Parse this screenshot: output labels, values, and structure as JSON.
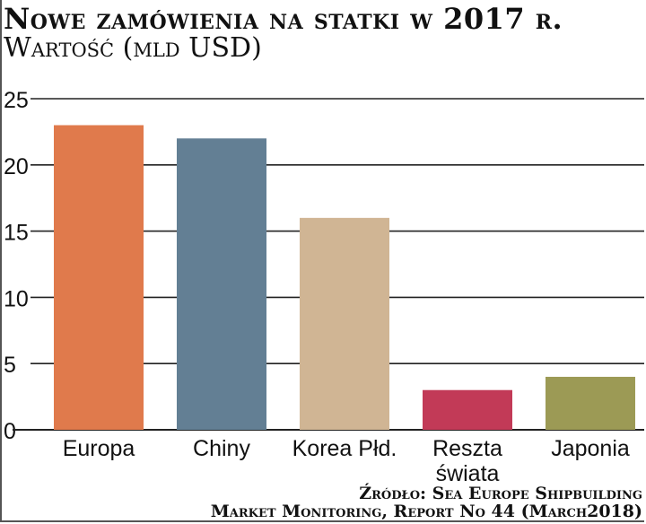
{
  "header": {
    "title": "Nowe zamówienia na statki w 2017 r.",
    "subtitle": "Wartość (mld USD)"
  },
  "source": {
    "line1": "Źródło: Sea Europe Shipbuilding",
    "line2": "Market Monitoring, Report No 44 (March2018)"
  },
  "chart_data": {
    "type": "bar",
    "title": "Nowe zamówienia na statki w 2017 r.",
    "ylabel": "Wartość (mld USD)",
    "xlabel": "",
    "categories": [
      "Europa",
      "Chiny",
      "Korea Płd.",
      "Reszta świata",
      "Japonia"
    ],
    "category_lines": [
      [
        "Europa"
      ],
      [
        "Chiny"
      ],
      [
        "Korea Płd."
      ],
      [
        "Reszta",
        "świata"
      ],
      [
        "Japonia"
      ]
    ],
    "values": [
      23,
      22,
      16,
      3,
      4
    ],
    "colors": [
      "#e07a4c",
      "#637f94",
      "#d0b594",
      "#c23a57",
      "#9c9a55"
    ],
    "ylim": [
      0,
      25
    ],
    "yticks": [
      0,
      5,
      10,
      15,
      20,
      25
    ],
    "grid": true,
    "legend": "none"
  }
}
